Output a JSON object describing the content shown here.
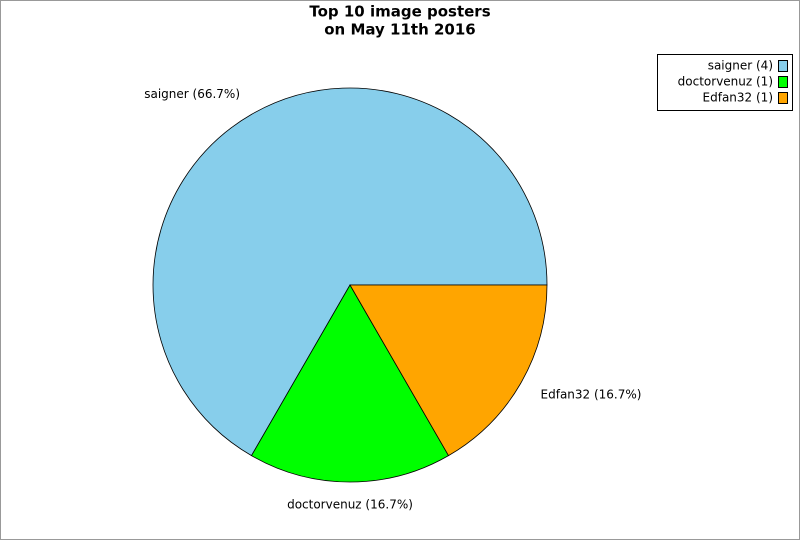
{
  "chart_data": {
    "type": "pie",
    "title": [
      "Top 10 image posters",
      "on May 11th 2016"
    ],
    "categories": [
      "saigner (4)",
      "doctorvenuz (1)",
      "Edfan32 (1)"
    ],
    "values": [
      4,
      1,
      1
    ],
    "slice_labels": [
      "saigner (66.7%)",
      "doctorvenuz (16.7%)",
      "Edfan32 (16.7%)"
    ],
    "colors": [
      "#87ceeb",
      "#00ff00",
      "#ffa500"
    ],
    "legend": "top-right"
  }
}
